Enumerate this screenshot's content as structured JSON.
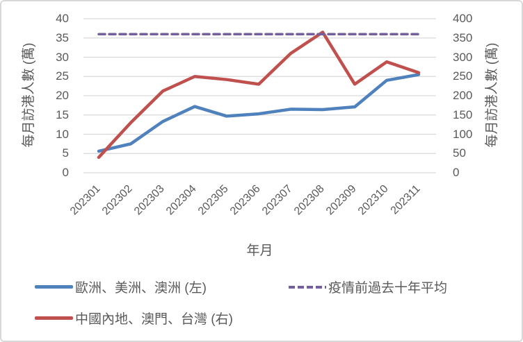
{
  "frame": {
    "background": "#ffffff",
    "border_color": "#d8d8d8"
  },
  "chart_data": {
    "type": "line",
    "x": [
      "202301",
      "202302",
      "202303",
      "202304",
      "202305",
      "202306",
      "202307",
      "202308",
      "202309",
      "202310",
      "202311"
    ],
    "xlabel": "年月",
    "left_axis": {
      "label": "每月訪港人數 (萬)",
      "ticks": [
        0,
        5,
        10,
        15,
        20,
        25,
        30,
        35,
        40
      ],
      "range": [
        0,
        40
      ]
    },
    "right_axis": {
      "label": "每月訪港人數 (萬)",
      "ticks": [
        0,
        50,
        100,
        150,
        200,
        250,
        300,
        350,
        400
      ],
      "range": [
        0,
        400
      ]
    },
    "grid": true,
    "gridline_color": "#d9d9d9",
    "text_color": "#595959",
    "legend_position": "bottom",
    "series": [
      {
        "id": "europe-americas-australia",
        "name": "歐洲、美洲、澳洲 (左)",
        "axis": "left",
        "style": "solid",
        "color": "#4F81BD",
        "values": [
          5.6,
          7.5,
          13.3,
          17.2,
          14.7,
          15.3,
          16.5,
          16.4,
          17.1,
          24,
          25.5
        ]
      },
      {
        "id": "mainland-macau-taiwan",
        "name": "中國內地、澳門、台灣 (右)",
        "axis": "right",
        "style": "solid",
        "color": "#C0504D",
        "values": [
          40,
          130,
          212,
          250,
          242,
          230,
          310,
          365,
          230,
          288,
          260
        ]
      },
      {
        "id": "pre-pandemic-10yr-average",
        "name": "疫情前過去十年平均",
        "axis": "right",
        "style": "dashed",
        "color": "#735F9B",
        "values": [
          360,
          360,
          360,
          360,
          360,
          360,
          360,
          360,
          360,
          360,
          360
        ]
      }
    ]
  }
}
